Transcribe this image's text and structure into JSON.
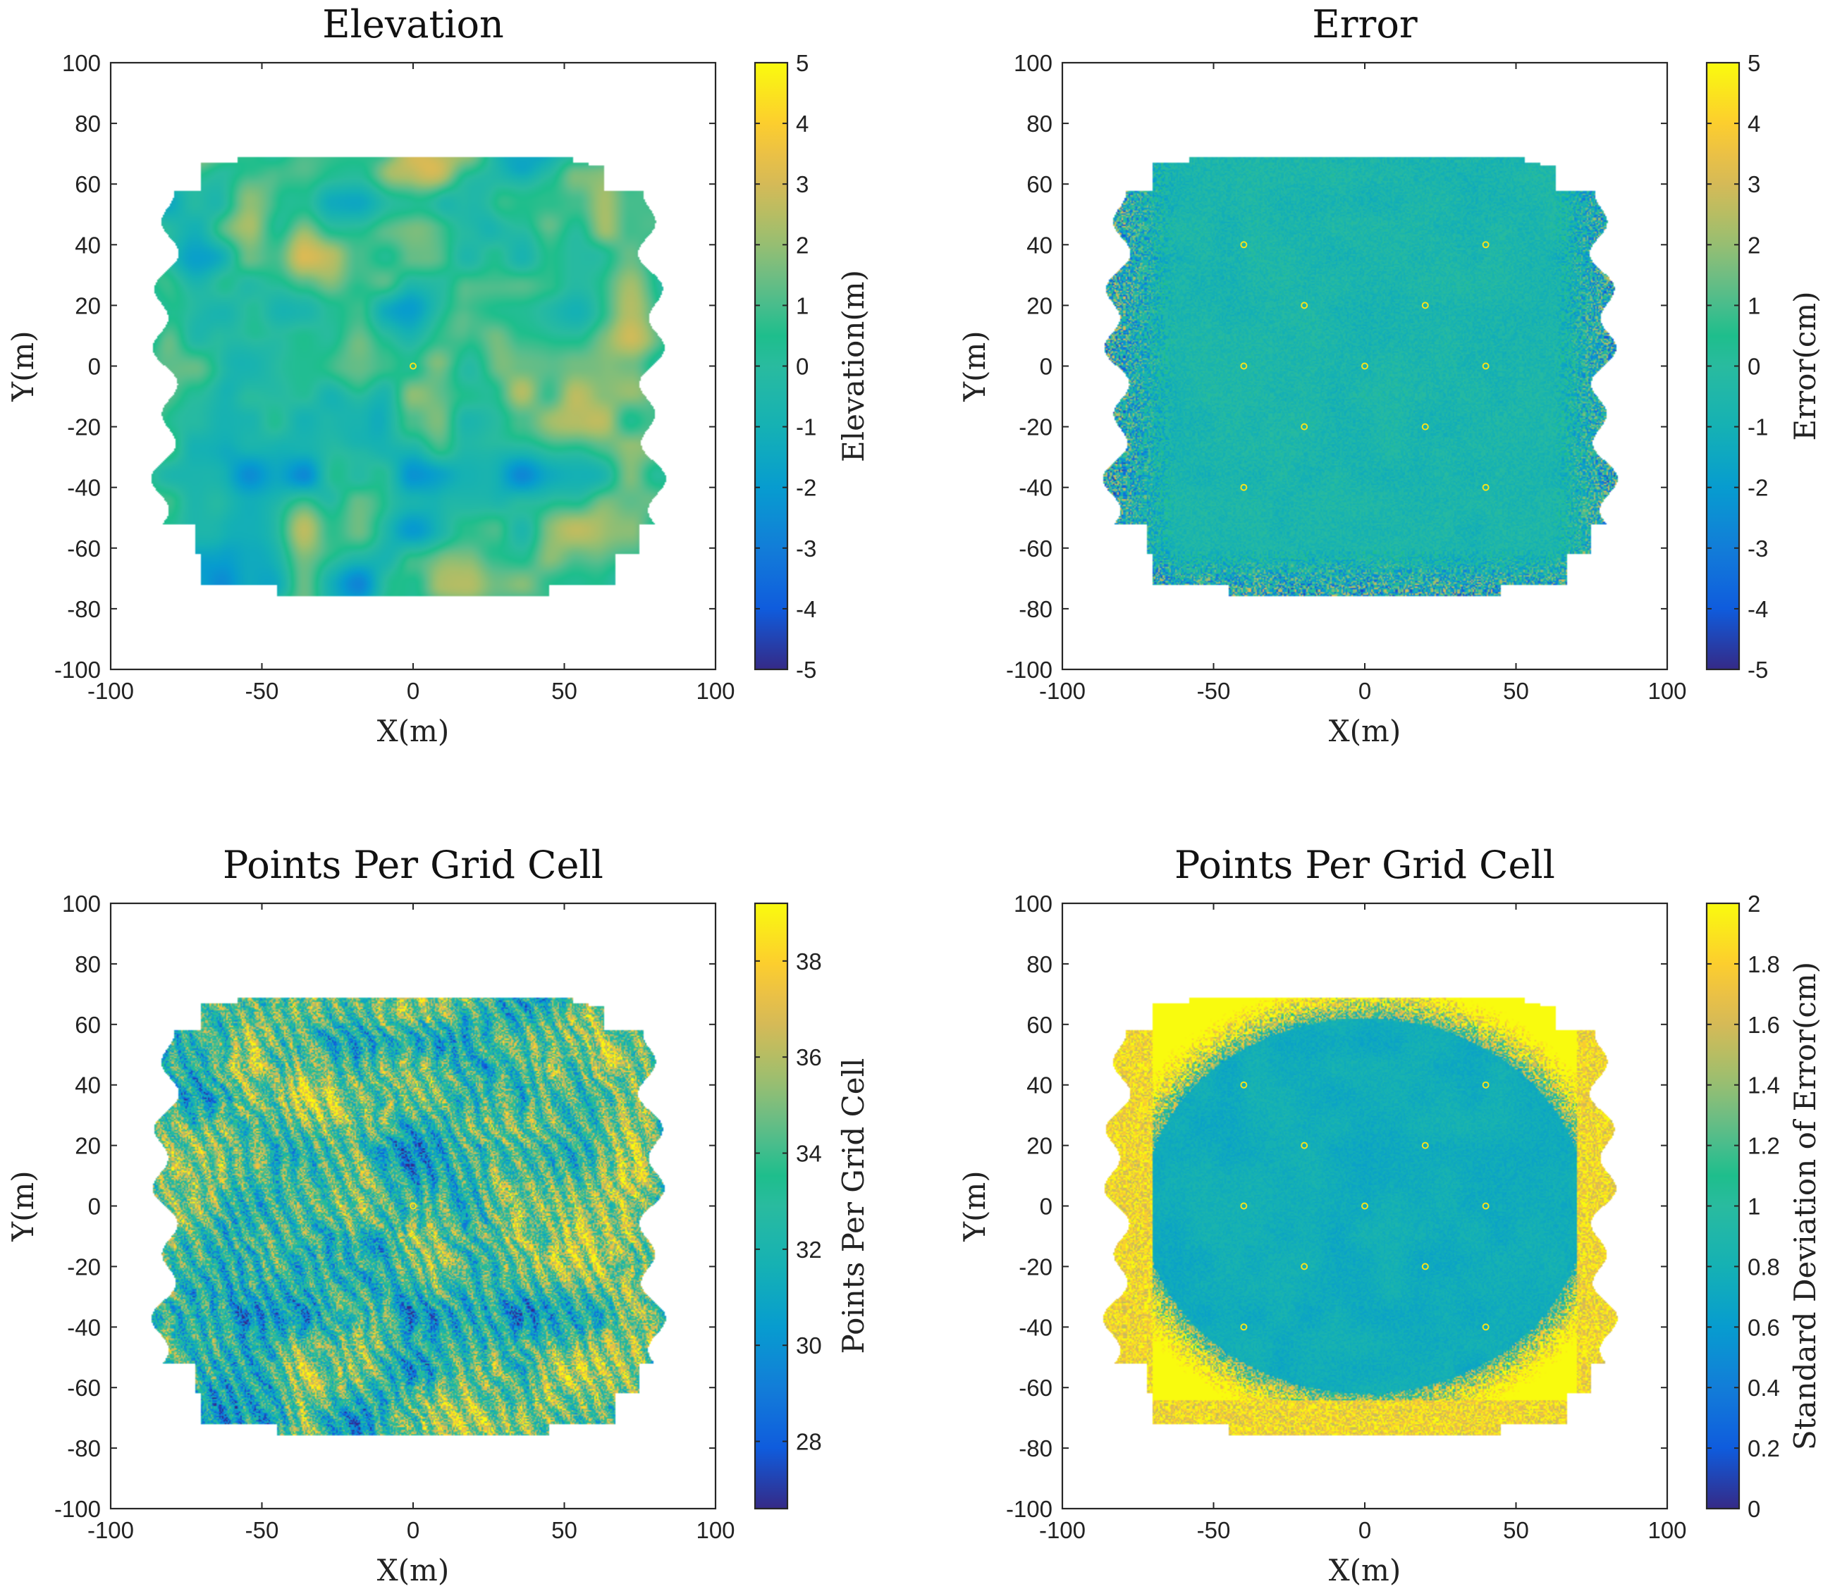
{
  "figure_title": "",
  "chart_data": [
    {
      "type": "heatmap",
      "title": "Elevation",
      "xlabel": "X(m)",
      "ylabel": "Y(m)",
      "xlim": [
        -100,
        100
      ],
      "ylim": [
        -100,
        100
      ],
      "xticks": [
        -100,
        -50,
        0,
        50,
        100
      ],
      "yticks": [
        -100,
        -80,
        -60,
        -40,
        -20,
        0,
        20,
        40,
        60,
        80,
        100
      ],
      "colorbar": {
        "label": "Elevation(m)",
        "range": [
          -5,
          5
        ],
        "ticks": [
          -5,
          -4,
          -3,
          -2,
          -1,
          0,
          1,
          2,
          3,
          4,
          5
        ]
      },
      "colormap": "parula",
      "field": "elevation",
      "highlight_points": [
        [
          0,
          0
        ]
      ]
    },
    {
      "type": "heatmap",
      "title": "Error",
      "xlabel": "X(m)",
      "ylabel": "Y(m)",
      "xlim": [
        -100,
        100
      ],
      "ylim": [
        -100,
        100
      ],
      "xticks": [
        -100,
        -50,
        0,
        50,
        100
      ],
      "yticks": [
        -100,
        -80,
        -60,
        -40,
        -20,
        0,
        20,
        40,
        60,
        80,
        100
      ],
      "colorbar": {
        "label": "Error(cm)",
        "range": [
          -5,
          5
        ],
        "ticks": [
          -5,
          -4,
          -3,
          -2,
          -1,
          0,
          1,
          2,
          3,
          4,
          5
        ]
      },
      "colormap": "parula",
      "field": "error",
      "highlight_points": [
        [
          -40,
          40
        ],
        [
          40,
          40
        ],
        [
          -20,
          20
        ],
        [
          20,
          20
        ],
        [
          -40,
          0
        ],
        [
          0,
          0
        ],
        [
          40,
          0
        ],
        [
          -20,
          -20
        ],
        [
          20,
          -20
        ],
        [
          -40,
          -40
        ],
        [
          40,
          -40
        ]
      ]
    },
    {
      "type": "heatmap",
      "title": "Points Per Grid Cell",
      "xlabel": "X(m)",
      "ylabel": "Y(m)",
      "xlim": [
        -100,
        100
      ],
      "ylim": [
        -100,
        100
      ],
      "xticks": [
        -100,
        -50,
        0,
        50,
        100
      ],
      "yticks": [
        -100,
        -80,
        -60,
        -40,
        -20,
        0,
        20,
        40,
        60,
        80,
        100
      ],
      "colorbar": {
        "label": "Points Per Grid Cell",
        "range": [
          26.6,
          39.2
        ],
        "ticks": [
          28,
          30,
          32,
          34,
          36,
          38
        ]
      },
      "colormap": "parula",
      "field": "points",
      "highlight_points": [
        [
          0,
          0
        ]
      ]
    },
    {
      "type": "heatmap",
      "title": "Points Per Grid Cell",
      "xlabel": "X(m)",
      "ylabel": "Y(m)",
      "xlim": [
        -100,
        100
      ],
      "ylim": [
        -100,
        100
      ],
      "xticks": [
        -100,
        -50,
        0,
        50,
        100
      ],
      "yticks": [
        -100,
        -80,
        -60,
        -40,
        -20,
        0,
        20,
        40,
        60,
        80,
        100
      ],
      "colorbar": {
        "label": "Standard Deviation of Error(cm)",
        "range": [
          0,
          2
        ],
        "ticks": [
          0,
          0.2,
          0.4,
          0.6,
          0.8,
          1,
          1.2,
          1.4,
          1.6,
          1.8,
          2
        ]
      },
      "colormap": "parula",
      "field": "stddev",
      "highlight_points": [
        [
          -40,
          40
        ],
        [
          40,
          40
        ],
        [
          -20,
          20
        ],
        [
          20,
          20
        ],
        [
          -40,
          0
        ],
        [
          0,
          0
        ],
        [
          40,
          0
        ],
        [
          -20,
          -20
        ],
        [
          20,
          -20
        ],
        [
          -40,
          -40
        ],
        [
          40,
          -40
        ]
      ]
    }
  ]
}
